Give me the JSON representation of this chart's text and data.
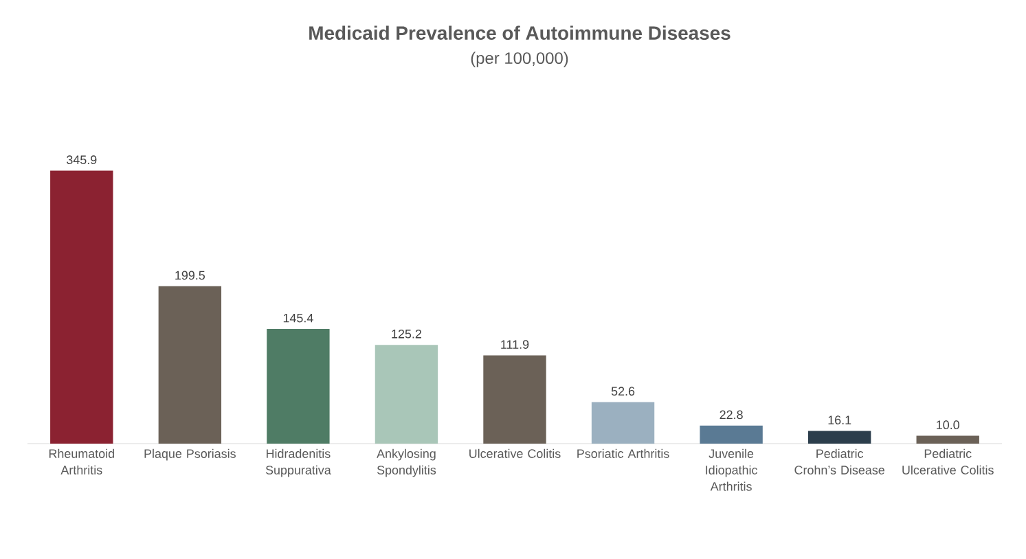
{
  "chart_data": {
    "type": "bar",
    "title": "Medicaid Prevalence of Autoimmune Diseases",
    "subtitle": "(per 100,000)",
    "categories": [
      "Rheumatoid Arthritis",
      "Plaque Psoriasis",
      "Hidradenitis Suppurativa",
      "Ankylosing Spondylitis",
      "Ulcerative Colitis",
      "Psoriatic Arthritis",
      "Juvenile Idiopathic Arthritis",
      "Pediatric Crohn’s Disease",
      "Pediatric Ulcerative Colitis"
    ],
    "values": [
      345.9,
      199.5,
      145.4,
      125.2,
      111.9,
      52.6,
      22.8,
      16.1,
      10.0
    ],
    "colors": [
      "#8b2231",
      "#6b6157",
      "#4f7c65",
      "#a9c6b8",
      "#6b6157",
      "#9bb0c0",
      "#5a7a94",
      "#2c3e4c",
      "#6b6157"
    ],
    "value_labels": [
      "345.9",
      "199.5",
      "145.4",
      "125.2",
      "111.9",
      "52.6",
      "22.8",
      "16.1",
      "10.0"
    ],
    "tick_labels": "x"
  }
}
